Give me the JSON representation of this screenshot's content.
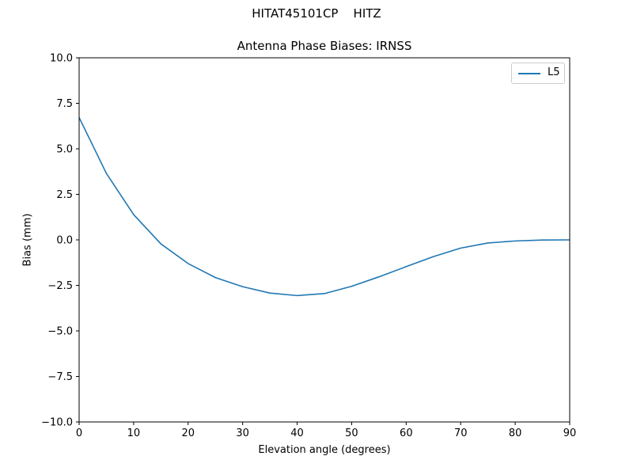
{
  "figure": {
    "suptitle": "HITAT45101CP    HITZ"
  },
  "chart_data": {
    "type": "line",
    "title": "Antenna Phase Biases: IRNSS",
    "xlabel": "Elevation angle (degrees)",
    "ylabel": "Bias (mm)",
    "xlim": [
      0,
      90
    ],
    "ylim": [
      -10,
      10
    ],
    "xticks": [
      0,
      10,
      20,
      30,
      40,
      50,
      60,
      70,
      80,
      90
    ],
    "xtick_labels": [
      "0",
      "10",
      "20",
      "30",
      "40",
      "50",
      "60",
      "70",
      "80",
      "90"
    ],
    "yticks": [
      10,
      7.5,
      5,
      2.5,
      0,
      -2.5,
      -5,
      -7.5,
      -10
    ],
    "ytick_labels": [
      "10.0",
      "7.5",
      "5.0",
      "2.5",
      "0.0",
      "−2.5",
      "−5.0",
      "−7.5",
      "−10.0"
    ],
    "grid": false,
    "legend_position": "upper right",
    "x": [
      0,
      5,
      10,
      15,
      20,
      25,
      30,
      35,
      40,
      45,
      50,
      55,
      60,
      65,
      70,
      75,
      80,
      85,
      90
    ],
    "series": [
      {
        "name": "L5",
        "color": "#1f77b4",
        "values": [
          6.72,
          3.65,
          1.39,
          -0.22,
          -1.3,
          -2.07,
          -2.57,
          -2.92,
          -3.06,
          -2.95,
          -2.55,
          -2.03,
          -1.47,
          -0.92,
          -0.45,
          -0.17,
          -0.06,
          -0.01,
          0.0
        ]
      }
    ]
  }
}
